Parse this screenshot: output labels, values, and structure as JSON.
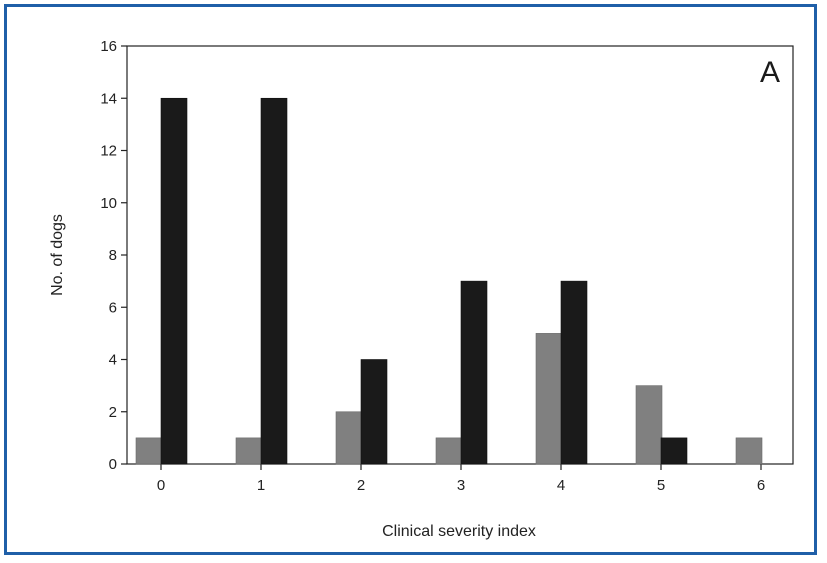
{
  "chart_data": {
    "type": "bar",
    "panel_label": "A",
    "xlabel": "Clinical severity index",
    "ylabel": "No. of dogs",
    "categories": [
      "0",
      "1",
      "2",
      "3",
      "4",
      "5",
      "6"
    ],
    "ylim": [
      0,
      16
    ],
    "yticks": [
      "0",
      "2",
      "4",
      "6",
      "8",
      "10",
      "12",
      "14",
      "16"
    ],
    "grid": false,
    "series": [
      {
        "values": [
          1,
          1,
          2,
          1,
          5,
          3,
          1
        ],
        "color": "#808080"
      },
      {
        "values": [
          14,
          14,
          4,
          7,
          7,
          1,
          0
        ],
        "color": "#1a1a1a"
      }
    ]
  }
}
